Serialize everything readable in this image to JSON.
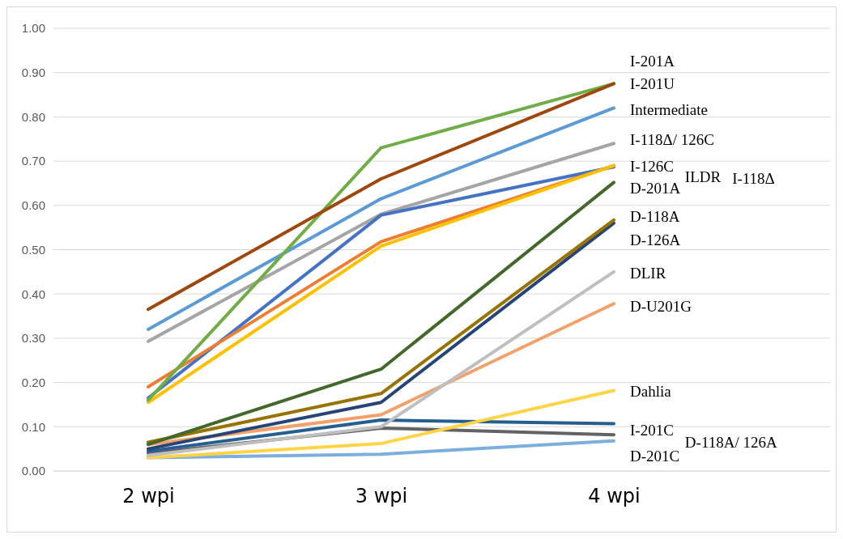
{
  "chart_data": {
    "type": "line",
    "categories": [
      "2 wpi",
      "3 wpi",
      "4 wpi"
    ],
    "ylim": [
      0,
      1
    ],
    "yticks": [
      {
        "value": 0,
        "label": "0.00"
      },
      {
        "value": 0.1,
        "label": "0.10"
      },
      {
        "value": 0.2,
        "label": "0.20"
      },
      {
        "value": 0.3,
        "label": "0.30"
      },
      {
        "value": 0.4,
        "label": "0.40"
      },
      {
        "value": 0.5,
        "label": "0.50"
      },
      {
        "value": 0.6,
        "label": "0.60"
      },
      {
        "value": 0.7,
        "label": "0.70"
      },
      {
        "value": 0.8,
        "label": "0.80"
      },
      {
        "value": 0.9,
        "label": "0.90"
      },
      {
        "value": 1,
        "label": "1.00"
      }
    ],
    "grid": "y",
    "marker": "none",
    "line_style": "solid",
    "series": [
      {
        "color": "#7cafdd",
        "values": [
          0.03,
          0.038,
          0.068
        ]
      },
      {
        "color": "#636363",
        "values": [
          0.04,
          0.097,
          0.082
        ]
      },
      {
        "color": "#255e91",
        "values": [
          0.045,
          0.115,
          0.107
        ]
      },
      {
        "color": "#ffd447",
        "values": [
          0.03,
          0.062,
          0.182
        ]
      },
      {
        "color": "#f4a06a",
        "values": [
          0.06,
          0.127,
          0.378
        ]
      },
      {
        "color": "#bfbfbf",
        "values": [
          0.035,
          0.1,
          0.45
        ]
      },
      {
        "color": "#264478",
        "values": [
          0.05,
          0.155,
          0.56
        ]
      },
      {
        "color": "#997300",
        "values": [
          0.065,
          0.175,
          0.567
        ]
      },
      {
        "color": "#43682b",
        "values": [
          0.06,
          0.23,
          0.652
        ]
      },
      {
        "color": "#a5a5a5",
        "values": [
          0.293,
          0.58,
          0.74
        ]
      },
      {
        "color": "#4472c4",
        "values": [
          0.165,
          0.578,
          0.687
        ]
      },
      {
        "color": "#ed7d31",
        "values": [
          0.19,
          0.518,
          0.69
        ]
      },
      {
        "color": "#ffc000",
        "values": [
          0.155,
          0.508,
          0.69
        ]
      },
      {
        "color": "#5b9bd5",
        "values": [
          0.32,
          0.615,
          0.82
        ]
      },
      {
        "color": "#70ad47",
        "values": [
          0.16,
          0.73,
          0.875
        ]
      },
      {
        "color": "#9e480e",
        "values": [
          0.365,
          0.66,
          0.875
        ]
      }
    ],
    "annotations": [
      "I-201A",
      "I-201U",
      "Intermediate",
      "I-118Δ/ 126C",
      "I-126C",
      "D-201A",
      "D-118A",
      "D-126A",
      "DLIR",
      "D-U201G",
      "Dahlia",
      "I-201C",
      "D-201C",
      "ILDR",
      "I-118Δ",
      "D-118A/ 126A"
    ]
  }
}
